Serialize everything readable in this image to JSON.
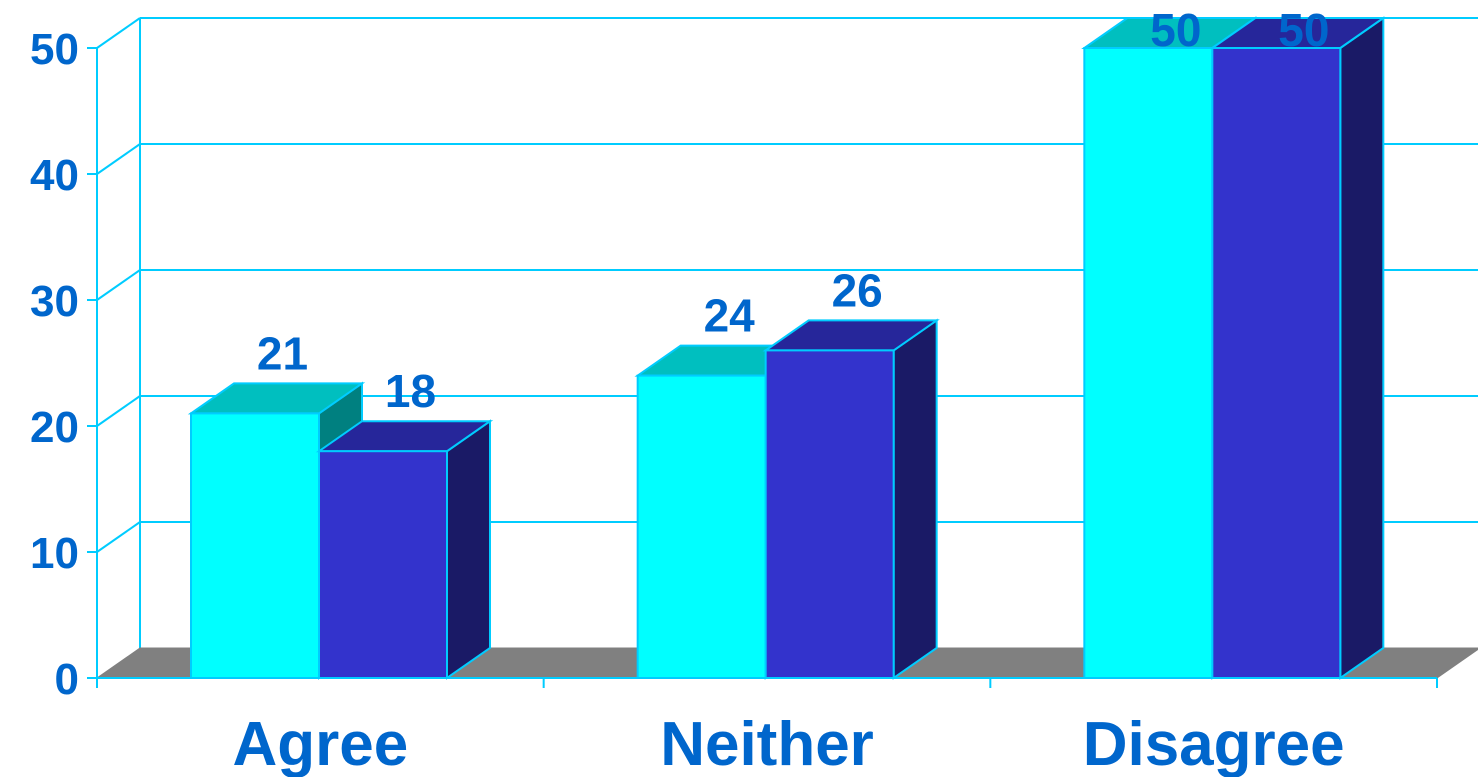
{
  "chart_data": {
    "type": "bar",
    "style": "3d-clustered",
    "title": "",
    "xlabel": "",
    "ylabel": "",
    "categories": [
      "Agree",
      "Neither",
      "Disagree"
    ],
    "series": [
      {
        "values": [
          21,
          24,
          50
        ]
      },
      {
        "values": [
          18,
          26,
          50
        ]
      }
    ],
    "data_labels": [
      [
        "21",
        "24",
        "50"
      ],
      [
        "18",
        "26",
        "50"
      ]
    ],
    "ylim": [
      0,
      50
    ],
    "yticks": [
      0,
      10,
      20,
      30,
      40,
      50
    ],
    "ytick_labels": [
      "0",
      "10",
      "20",
      "30",
      "40",
      "50"
    ],
    "grid": true,
    "legend": "none"
  },
  "colors": {
    "series": [
      {
        "front": "#00ffff",
        "top": "#00bfbf",
        "side": "#008080"
      },
      {
        "front": "#3333cc",
        "top": "#26269a",
        "side": "#1a1a66"
      }
    ],
    "grid": "#00ccff",
    "floor": "#808080",
    "text": "#0066cc"
  }
}
